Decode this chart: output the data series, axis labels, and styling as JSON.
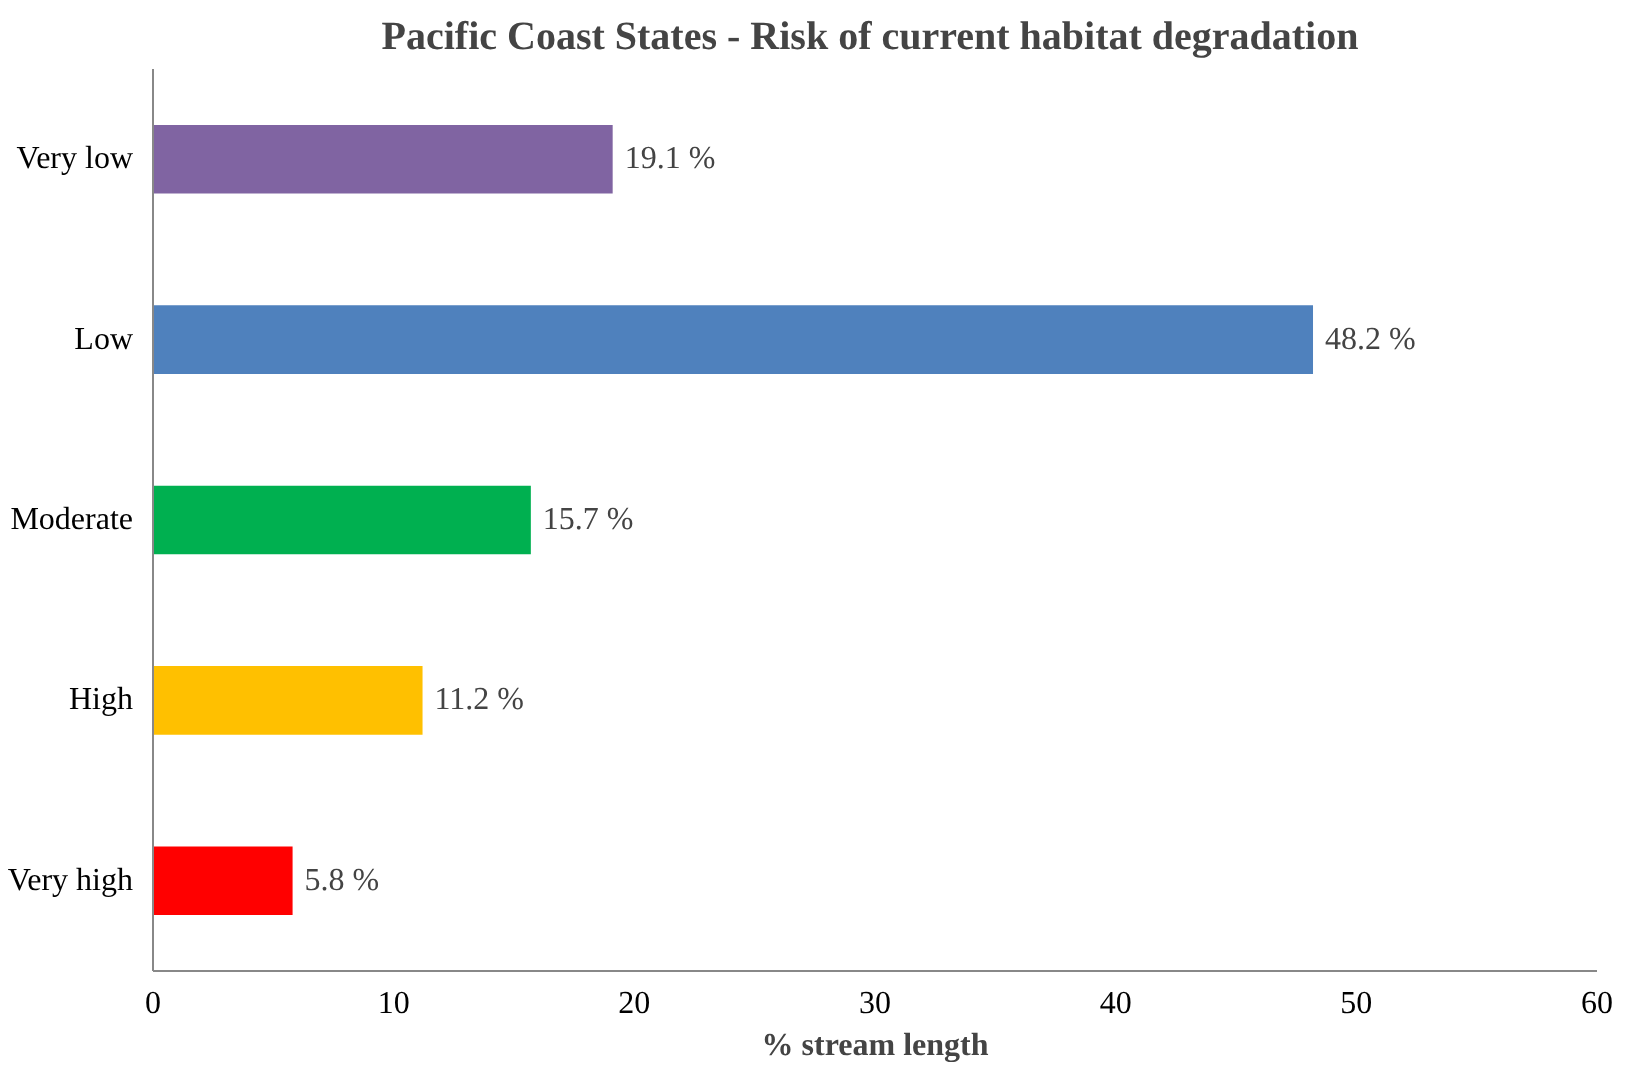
{
  "chart_data": {
    "type": "bar",
    "orientation": "horizontal",
    "title": "Pacific Coast States - Risk of current  habitat degradation",
    "xlabel": "% stream length",
    "categories": [
      "Very low",
      "Low",
      "Moderate",
      "High",
      "Very high"
    ],
    "values": [
      19.1,
      48.2,
      15.7,
      11.2,
      5.8
    ],
    "colors": [
      "#8064a2",
      "#4f81bd",
      "#00b050",
      "#ffc000",
      "#ff0000"
    ],
    "value_labels": [
      "19.1 %",
      "48.2 %",
      "15.7 %",
      "11.2 %",
      "5.8 %"
    ],
    "xlim": [
      0,
      60
    ],
    "xticks": [
      0,
      10,
      20,
      30,
      40,
      50,
      60
    ],
    "grid": false
  }
}
